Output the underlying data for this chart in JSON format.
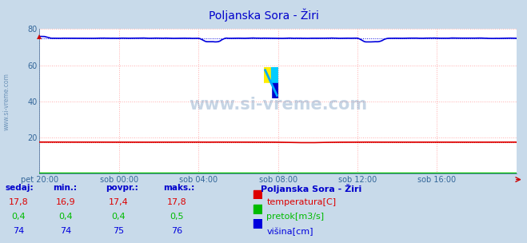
{
  "title": "Poljanska Sora - Žiri",
  "fig_bg_color": "#c8daea",
  "plot_bg_color": "#ffffff",
  "x_labels": [
    "pet 20:00",
    "sob 00:00",
    "sob 04:00",
    "sob 08:00",
    "sob 12:00",
    "sob 16:00"
  ],
  "ylim": [
    0,
    80
  ],
  "yticks": [
    20,
    40,
    60,
    80
  ],
  "grid_color": "#ffaaaa",
  "watermark": "www.si-vreme.com",
  "legend_title": "Poljanska Sora - Žiri",
  "legend_items": [
    {
      "label": "temperatura[C]",
      "color": "#dd0000"
    },
    {
      "label": "pretok[m3/s]",
      "color": "#00bb00"
    },
    {
      "label": "višina[cm]",
      "color": "#0000dd"
    }
  ],
  "table_headers": [
    "sedaj:",
    "min.:",
    "povpr.:",
    "maks.:"
  ],
  "table_rows": [
    [
      "17,8",
      "16,9",
      "17,4",
      "17,8"
    ],
    [
      "0,4",
      "0,4",
      "0,4",
      "0,5"
    ],
    [
      "74",
      "74",
      "75",
      "76"
    ]
  ],
  "temp_color": "#dd0000",
  "flow_color": "#00bb00",
  "height_color": "#0000dd",
  "axis_color": "#336699",
  "title_color": "#0000cc",
  "label_color": "#336699",
  "n_points": 289
}
